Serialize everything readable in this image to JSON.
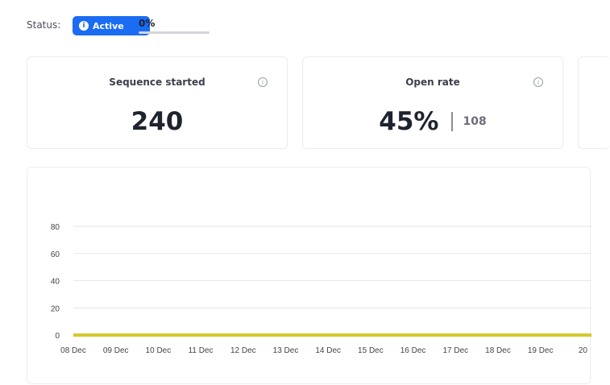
{
  "status": {
    "label": "Status:",
    "badge_text": "Active",
    "badge_icon": "info-icon",
    "progress_text": "0%",
    "progress_value": 0
  },
  "cards": [
    {
      "title": "Sequence started",
      "value": "240",
      "info_icon": "info-icon"
    },
    {
      "title": "Open rate",
      "value": "45%",
      "secondary": "108",
      "info_icon": "info-icon"
    }
  ],
  "colors": {
    "accent": "#1a6cf2",
    "series": "#d4c82a",
    "grid": "#e6e6ea"
  },
  "chart_data": {
    "type": "line",
    "x": [
      "08 Dec",
      "09 Dec",
      "10 Dec",
      "11 Dec",
      "12 Dec",
      "13 Dec",
      "14 Dec",
      "15 Dec",
      "16 Dec",
      "17 Dec",
      "18 Dec",
      "19 Dec",
      "20"
    ],
    "values": [
      0,
      0,
      0,
      0,
      0,
      0,
      0,
      0,
      0,
      0,
      0,
      0,
      0
    ],
    "yticks": [
      "0",
      "20",
      "40",
      "60",
      "80"
    ],
    "ylim": [
      0,
      80
    ],
    "grid": true,
    "title": "",
    "xlabel": "",
    "ylabel": ""
  }
}
